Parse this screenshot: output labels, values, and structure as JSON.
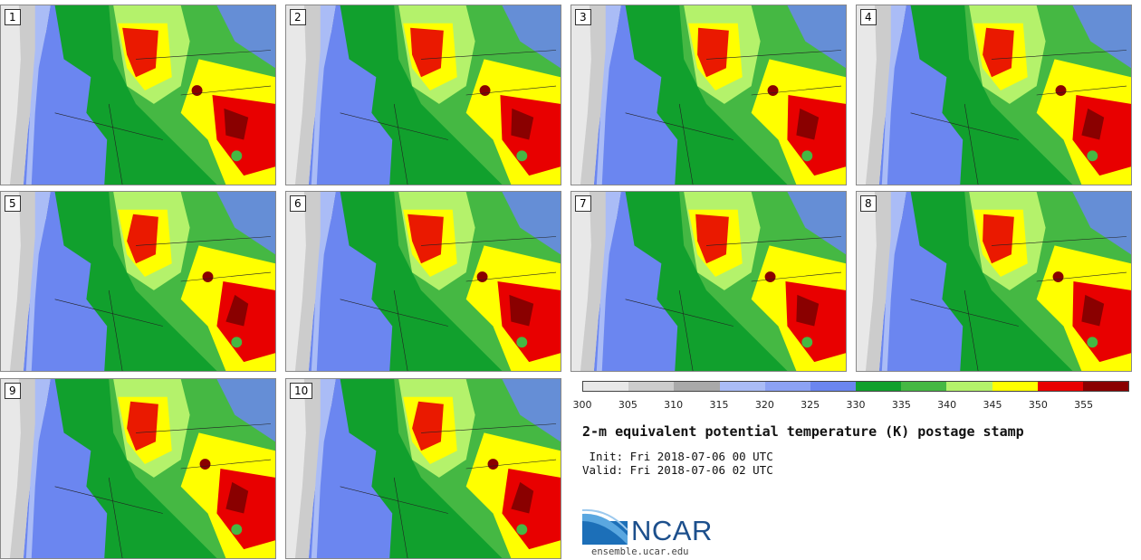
{
  "panels": [
    "1",
    "2",
    "3",
    "4",
    "5",
    "6",
    "7",
    "8",
    "9",
    "10"
  ],
  "colorbar": {
    "colors": [
      "#e8e8e8",
      "#cccccc",
      "#a9a9a9",
      "#aabcf6",
      "#8ca2f4",
      "#6b86f0",
      "#11a02d",
      "#45b843",
      "#b4f26b",
      "#ffff00",
      "#e80000",
      "#8a0000"
    ],
    "ticks": [
      "300",
      "305",
      "310",
      "315",
      "320",
      "325",
      "330",
      "335",
      "340",
      "345",
      "350",
      "355"
    ]
  },
  "title": "2-m equivalent potential temperature (K) postage stamp",
  "init": " Init: Fri 2018-07-06 00 UTC",
  "valid": "Valid: Fri 2018-07-06 02 UTC",
  "logo": {
    "text": "NCAR",
    "site": "ensemble.ucar.edu"
  }
}
